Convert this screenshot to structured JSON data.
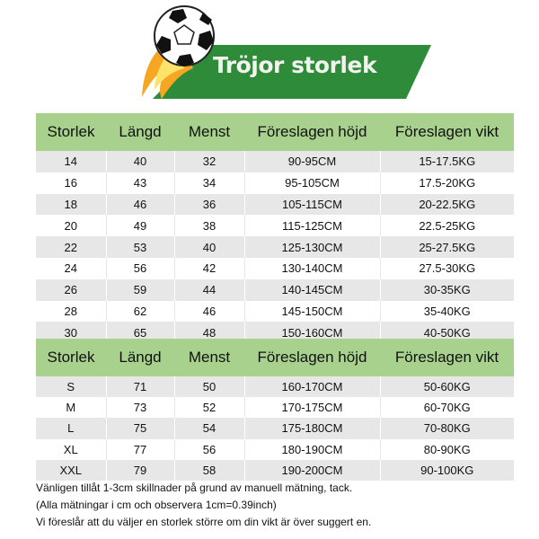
{
  "title": "Tröjor storlek",
  "colors": {
    "header": "#a9d18e",
    "banner": "#2e8b3a",
    "row_alt": "#e7e7e7",
    "flame": "#f5a623"
  },
  "table1": {
    "headers": [
      "Storlek",
      "Längd",
      "Menst",
      "Föreslagen höjd",
      "Föreslagen vikt"
    ],
    "rows": [
      [
        "14",
        "40",
        "32",
        "90-95CM",
        "15-17.5KG"
      ],
      [
        "16",
        "43",
        "34",
        "95-105CM",
        "17.5-20KG"
      ],
      [
        "18",
        "46",
        "36",
        "105-115CM",
        "20-22.5KG"
      ],
      [
        "20",
        "49",
        "38",
        "115-125CM",
        "22.5-25KG"
      ],
      [
        "22",
        "53",
        "40",
        "125-130CM",
        "25-27.5KG"
      ],
      [
        "24",
        "56",
        "42",
        "130-140CM",
        "27.5-30KG"
      ],
      [
        "26",
        "59",
        "44",
        "140-145CM",
        "30-35KG"
      ],
      [
        "28",
        "62",
        "46",
        "145-150CM",
        "35-40KG"
      ],
      [
        "30",
        "65",
        "48",
        "150-160CM",
        "40-50KG"
      ]
    ]
  },
  "table2": {
    "headers": [
      "Storlek",
      "Längd",
      "Menst",
      "Föreslagen höjd",
      "Föreslagen vikt"
    ],
    "rows": [
      [
        "S",
        "71",
        "50",
        "160-170CM",
        "50-60KG"
      ],
      [
        "M",
        "73",
        "52",
        "170-175CM",
        "60-70KG"
      ],
      [
        "L",
        "75",
        "54",
        "175-180CM",
        "70-80KG"
      ],
      [
        "XL",
        "77",
        "56",
        "180-190CM",
        "80-90KG"
      ],
      [
        "XXL",
        "79",
        "58",
        "190-200CM",
        "90-100KG"
      ]
    ]
  },
  "notes": [
    "Vänligen tillåt 1-3cm skillnader på grund av manuell mätning, tack.",
    "(Alla mätningar i cm och observera 1cm=0.39inch)",
    "Vi föreslår att du väljer en storlek större om din vikt är över suggert en."
  ]
}
